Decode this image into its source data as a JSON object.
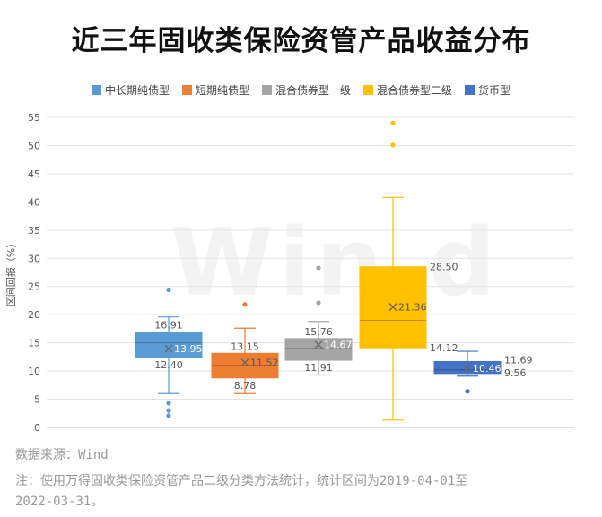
{
  "chart_data": {
    "type": "box",
    "title": "近三年固收类保险资管产品收益分布",
    "ylabel": "区间回报（%）",
    "ylim": [
      0,
      55
    ],
    "yticks": [
      0,
      5,
      10,
      15,
      20,
      25,
      30,
      35,
      40,
      45,
      50,
      55
    ],
    "grid": true,
    "legend_position": "top",
    "series": [
      {
        "name": "中长期纯债型",
        "color": "#5B9BD5",
        "min": 6.0,
        "q1": 12.4,
        "median": 15.0,
        "q3": 16.91,
        "max": 19.6,
        "mean": 13.95,
        "outliers": [
          24.4,
          4.3,
          3.0,
          2.1
        ],
        "labels": {
          "q3": "16.91",
          "q1": "12.40",
          "mean": "13.95"
        }
      },
      {
        "name": "短期纯债型",
        "color": "#ED7D31",
        "min": 6.0,
        "q1": 8.78,
        "median": 11.0,
        "q3": 13.15,
        "max": 17.6,
        "mean": 11.52,
        "outliers": [
          21.8
        ],
        "labels": {
          "q3": "13.15",
          "q1": "8.78",
          "mean": "11.52"
        }
      },
      {
        "name": "混合债券型一级",
        "color": "#A5A5A5",
        "min": 9.3,
        "q1": 11.91,
        "median": 14.0,
        "q3": 15.76,
        "max": 18.8,
        "mean": 14.67,
        "outliers": [
          28.3,
          22.1
        ],
        "labels": {
          "q3": "15.76",
          "q1": "11.91",
          "mean": "14.67"
        }
      },
      {
        "name": "混合债券型二级",
        "color": "#FFC000",
        "min": 1.3,
        "q1": 14.12,
        "median": 19.0,
        "q3": 28.5,
        "max": 40.8,
        "mean": 21.36,
        "outliers": [
          54.0,
          50.1
        ],
        "labels": {
          "q3": "28.50",
          "q1": "14.12",
          "mean": "21.36"
        }
      },
      {
        "name": "货币型",
        "color": "#4472C4",
        "min": 9.1,
        "q1": 9.56,
        "median": 10.2,
        "q3": 11.69,
        "max": 13.5,
        "mean": 10.46,
        "outliers": [
          6.4
        ],
        "labels": {
          "q3": "11.69",
          "q1": "9.56",
          "mean": "10.46"
        }
      }
    ]
  },
  "watermark": "Win.d",
  "footer": {
    "source": "数据来源：Wind",
    "note_line1": "注：使用万得固收类保险资管产品二级分类方法统计，统计区间为2019-04-01至",
    "note_line2": "2022-03-31。"
  }
}
